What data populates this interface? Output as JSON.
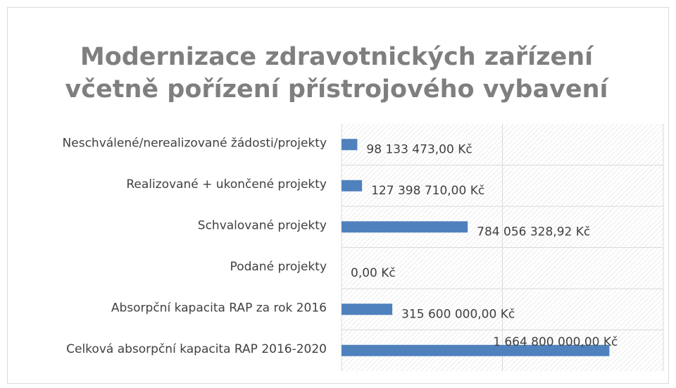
{
  "chart_data": {
    "type": "bar",
    "orientation": "horizontal",
    "title": [
      "Modernizace zdravotnických zařízení",
      "včetně pořízení přístrojového vybavení"
    ],
    "categories": [
      "Neschválené/nerealizované žádosti/projekty",
      "Realizované + ukončené projekty",
      "Schvalované projekty",
      "Podané projekty",
      "Absorpční kapacita RAP za rok 2016",
      "Celková absorpční kapacita RAP 2016-2020"
    ],
    "values": [
      98133473,
      127398710,
      784056328.92,
      0,
      315600000,
      1664800000
    ],
    "value_labels": [
      "98 133 473,00 Kč",
      "127 398 710,00 Kč",
      "784 056 328,92 Kč",
      "0,00 Kč",
      "315 600 000,00 Kč",
      "1 664 800 000,00 Kč"
    ],
    "color": "#4f81bd",
    "xlim": [
      0,
      2000000000
    ],
    "xticks": [
      0,
      1000000000,
      2000000000
    ],
    "grid": true
  }
}
